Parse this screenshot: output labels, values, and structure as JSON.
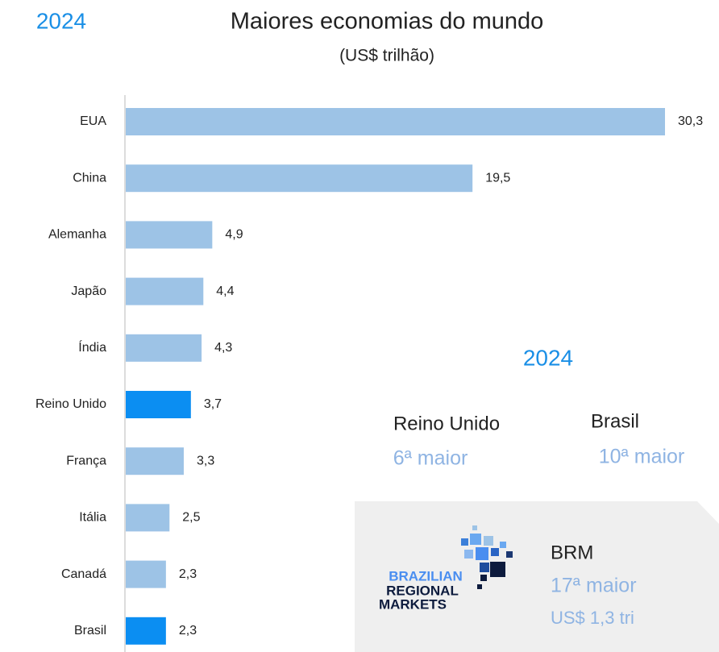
{
  "chart_data": {
    "type": "bar",
    "orientation": "horizontal",
    "year": "2024",
    "title": "Maiores economias do mundo",
    "subtitle": "(US$ trilhão)",
    "categories": [
      "EUA",
      "China",
      "Alemanha",
      "Japão",
      "Índia",
      "Reino Unido",
      "França",
      "Itália",
      "Canadá",
      "Brasil"
    ],
    "values": [
      30.3,
      19.5,
      4.9,
      4.4,
      4.3,
      3.7,
      3.3,
      2.5,
      2.3,
      2.3
    ],
    "value_labels": [
      "30,3",
      "19,5",
      "4,9",
      "4,4",
      "4,3",
      "3,7",
      "3,3",
      "2,5",
      "2,3",
      "2,3"
    ],
    "colors": [
      "#9dc3e6",
      "#9dc3e6",
      "#9dc3e6",
      "#9dc3e6",
      "#9dc3e6",
      "#0b8ef2",
      "#9dc3e6",
      "#9dc3e6",
      "#9dc3e6",
      "#0b8ef2"
    ],
    "highlights": {
      "year": "2024",
      "items": [
        {
          "name": "Reino Unido",
          "rank": "6ª maior"
        },
        {
          "name": "Brasil",
          "rank": "10ª maior"
        }
      ]
    },
    "brm": {
      "logo": [
        "BRAZILIAN",
        "REGIONAL",
        "MARKETS"
      ],
      "name": "BRM",
      "rank": "17ª maior",
      "value": "US$ 1,3 tri"
    }
  }
}
